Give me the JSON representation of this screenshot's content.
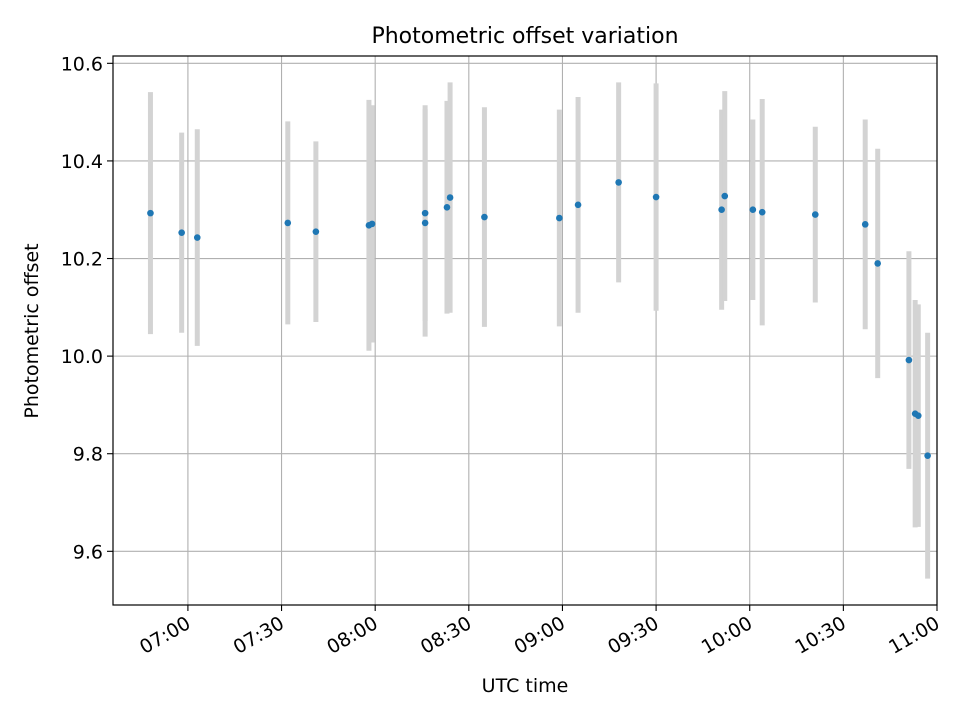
{
  "chart_data": {
    "type": "scatter",
    "title": "Photometric offset variation",
    "xlabel": "UTC time",
    "ylabel": "Photometric offset",
    "x_tick_labels": [
      "07:00",
      "07:30",
      "08:00",
      "08:30",
      "09:00",
      "09:30",
      "10:00",
      "10:30",
      "11:00"
    ],
    "y_tick_labels": [
      "9.6",
      "9.8",
      "10.0",
      "10.2",
      "10.4",
      "10.6"
    ],
    "xlim": [
      "06:36",
      "11:00"
    ],
    "ylim": [
      9.49,
      10.615
    ],
    "grid": true,
    "marker_color": "#1f77b4",
    "errorbar_color": "#d3d3d3",
    "points": [
      {
        "x": "06:48",
        "y": 10.293,
        "err": 0.248
      },
      {
        "x": "06:58",
        "y": 10.253,
        "err": 0.205
      },
      {
        "x": "07:03",
        "y": 10.243,
        "err": 0.222
      },
      {
        "x": "07:32",
        "y": 10.273,
        "err": 0.208
      },
      {
        "x": "07:41",
        "y": 10.255,
        "err": 0.185
      },
      {
        "x": "07:58",
        "y": 10.268,
        "err": 0.257
      },
      {
        "x": "07:59",
        "y": 10.271,
        "err": 0.243
      },
      {
        "x": "08:16",
        "y": 10.293,
        "err": 0.221
      },
      {
        "x": "08:16",
        "y": 10.273,
        "err": 0.233
      },
      {
        "x": "08:23",
        "y": 10.305,
        "err": 0.218
      },
      {
        "x": "08:24",
        "y": 10.325,
        "err": 0.236
      },
      {
        "x": "08:35",
        "y": 10.285,
        "err": 0.225
      },
      {
        "x": "08:59",
        "y": 10.283,
        "err": 0.222
      },
      {
        "x": "09:05",
        "y": 10.31,
        "err": 0.221
      },
      {
        "x": "09:18",
        "y": 10.356,
        "err": 0.205
      },
      {
        "x": "09:30",
        "y": 10.326,
        "err": 0.233
      },
      {
        "x": "09:51",
        "y": 10.3,
        "err": 0.205
      },
      {
        "x": "09:52",
        "y": 10.328,
        "err": 0.215
      },
      {
        "x": "10:01",
        "y": 10.3,
        "err": 0.185
      },
      {
        "x": "10:04",
        "y": 10.295,
        "err": 0.232
      },
      {
        "x": "10:21",
        "y": 10.29,
        "err": 0.18
      },
      {
        "x": "10:37",
        "y": 10.27,
        "err": 0.215
      },
      {
        "x": "10:41",
        "y": 10.19,
        "err": 0.235
      },
      {
        "x": "10:51",
        "y": 9.992,
        "err": 0.223
      },
      {
        "x": "10:53",
        "y": 9.882,
        "err": 0.233
      },
      {
        "x": "10:54",
        "y": 9.878,
        "err": 0.228
      },
      {
        "x": "10:57",
        "y": 9.796,
        "err": 0.252
      }
    ]
  }
}
